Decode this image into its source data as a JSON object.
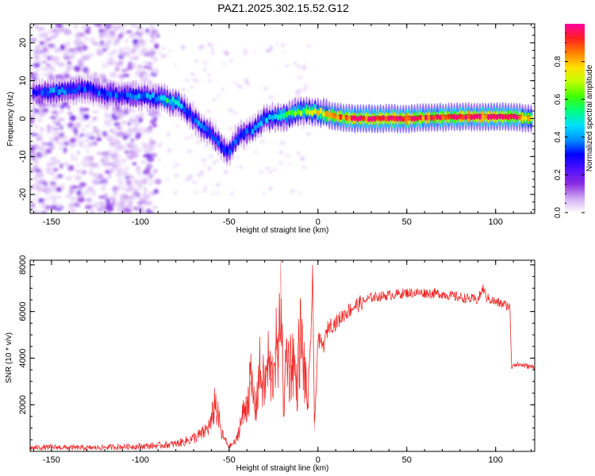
{
  "title": "PAZ1.2025.302.15.52.G12",
  "chart_data": [
    {
      "type": "heatmap",
      "name": "spectrogram",
      "xlabel": "Height of straight line (km)",
      "ylabel": "Frequency (Hz)",
      "xlim": [
        -162,
        122
      ],
      "ylim": [
        -25,
        25
      ],
      "xticks": [
        -150,
        -100,
        -50,
        0,
        50,
        100
      ],
      "yticks": [
        20,
        10,
        0,
        -10,
        -20
      ],
      "colorbar": {
        "label": "Normalized spectral amplitude",
        "range": [
          0.0,
          1.0
        ],
        "ticks": [
          0.0,
          0.2,
          0.4,
          0.6,
          0.8
        ],
        "colors": [
          "#ffffff",
          "#cfa8f2",
          "#8a2be2",
          "#5010ff",
          "#0000ff",
          "#0090ff",
          "#00e0ff",
          "#00ff80",
          "#40ff00",
          "#c0ff00",
          "#ffe000",
          "#ff8000",
          "#ff2020",
          "#ff00a0"
        ]
      },
      "ridge": [
        {
          "x": -160,
          "f": 7,
          "a": 0.25
        },
        {
          "x": -150,
          "f": 7,
          "a": 0.35
        },
        {
          "x": -140,
          "f": 7.5,
          "a": 0.3
        },
        {
          "x": -130,
          "f": 8,
          "a": 0.3
        },
        {
          "x": -120,
          "f": 6.5,
          "a": 0.3
        },
        {
          "x": -110,
          "f": 6,
          "a": 0.3
        },
        {
          "x": -100,
          "f": 6,
          "a": 0.35
        },
        {
          "x": -90,
          "f": 5.5,
          "a": 0.35
        },
        {
          "x": -85,
          "f": 5,
          "a": 0.45
        },
        {
          "x": -78,
          "f": 4,
          "a": 0.4
        },
        {
          "x": -72,
          "f": 1,
          "a": 0.3
        },
        {
          "x": -66,
          "f": -2,
          "a": 0.35
        },
        {
          "x": -60,
          "f": -4,
          "a": 0.3
        },
        {
          "x": -55,
          "f": -7,
          "a": 0.3
        },
        {
          "x": -50,
          "f": -9,
          "a": 0.3
        },
        {
          "x": -47,
          "f": -6,
          "a": 0.3
        },
        {
          "x": -42,
          "f": -4,
          "a": 0.3
        },
        {
          "x": -36,
          "f": -3,
          "a": 0.35
        },
        {
          "x": -30,
          "f": 0,
          "a": 0.35
        },
        {
          "x": -22,
          "f": 0.5,
          "a": 0.45
        },
        {
          "x": -15,
          "f": 1,
          "a": 0.5
        },
        {
          "x": -9,
          "f": 2,
          "a": 0.55
        },
        {
          "x": -4,
          "f": 2,
          "a": 0.6
        },
        {
          "x": 2,
          "f": 1.5,
          "a": 0.65
        },
        {
          "x": 10,
          "f": 0.5,
          "a": 0.75
        },
        {
          "x": 20,
          "f": 0,
          "a": 0.85
        },
        {
          "x": 35,
          "f": 0,
          "a": 0.88
        },
        {
          "x": 50,
          "f": 0,
          "a": 0.85
        },
        {
          "x": 65,
          "f": 0.3,
          "a": 0.8
        },
        {
          "x": 80,
          "f": 0.5,
          "a": 0.82
        },
        {
          "x": 95,
          "f": 0.5,
          "a": 0.85
        },
        {
          "x": 110,
          "f": 0.5,
          "a": 0.85
        },
        {
          "x": 121,
          "f": 0,
          "a": 0.6
        }
      ],
      "noise_region_xlim": [
        -162,
        -90
      ]
    },
    {
      "type": "line",
      "name": "snr",
      "xlabel": "Height of straight line (km)",
      "ylabel": "SNR (10 * v/v)",
      "xlim": [
        -162,
        122
      ],
      "ylim": [
        0,
        8200
      ],
      "xticks": [
        -150,
        -100,
        -50,
        0,
        50,
        100
      ],
      "yticks": [
        2000,
        4000,
        6000,
        8000
      ],
      "color": "#ee2222",
      "series": [
        {
          "name": "SNR",
          "x": [
            -162,
            -150,
            -130,
            -110,
            -100,
            -90,
            -80,
            -72,
            -65,
            -60,
            -58,
            -56,
            -54,
            -50,
            -46,
            -44,
            -40,
            -38,
            -35,
            -33,
            -30,
            -28,
            -26,
            -24,
            -22,
            -21,
            -20,
            -19,
            -18,
            -16,
            -14,
            -12,
            -10,
            -8,
            -6,
            -4,
            -3,
            -2,
            0,
            3,
            6,
            10,
            15,
            20,
            25,
            30,
            40,
            50,
            60,
            70,
            80,
            90,
            93,
            95,
            100,
            105,
            108,
            109,
            110,
            115,
            122
          ],
          "y": [
            150,
            180,
            150,
            200,
            220,
            250,
            320,
            500,
            750,
            1200,
            2200,
            1400,
            700,
            200,
            450,
            1100,
            2100,
            3000,
            1800,
            3500,
            2700,
            3800,
            3000,
            4500,
            3600,
            8200,
            3800,
            1500,
            4400,
            3600,
            4100,
            2700,
            4900,
            3800,
            2000,
            4700,
            8000,
            900,
            4800,
            4500,
            5400,
            5500,
            5900,
            6200,
            6400,
            6600,
            6700,
            6800,
            6800,
            6750,
            6600,
            6500,
            7000,
            6600,
            6400,
            6300,
            6200,
            3600,
            3750,
            3700,
            3600
          ]
        }
      ]
    }
  ]
}
